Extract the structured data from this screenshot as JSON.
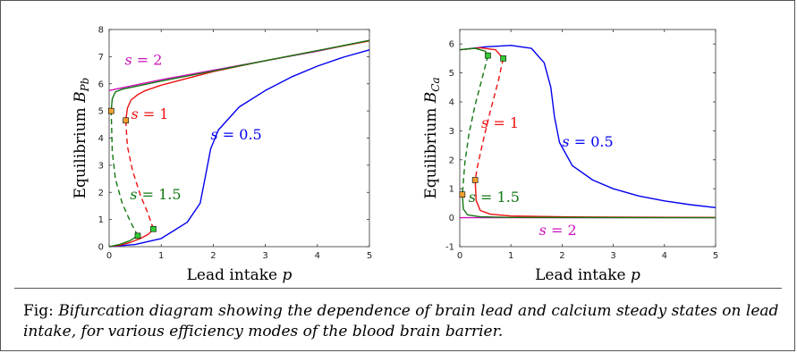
{
  "caption": {
    "lead": "Fig:",
    "text": "Bifurcation diagram showing the dependence of brain lead and calcium steady states on lead intake, for various efficiency modes of the blood brain barrier."
  },
  "colors": {
    "s0_5": "#0000ee",
    "s1": "#ee1111",
    "s1_5": "#117711",
    "s2": "#cc11bb",
    "marker_green": "#33cc33",
    "marker_orange": "#f0a030"
  },
  "chart_data": [
    {
      "type": "line",
      "xlabel": "Lead intake p",
      "ylabel": "Equilibrium B_Pb",
      "xlim": [
        0,
        5
      ],
      "ylim": [
        0,
        8
      ],
      "xticks": [
        0,
        1,
        2,
        3,
        4,
        5
      ],
      "yticks": [
        0,
        1,
        2,
        3,
        4,
        5,
        6,
        7,
        8
      ],
      "grid": false,
      "annotations": [
        {
          "text": "s = 2",
          "x": 0.3,
          "y": 6.7,
          "color": "s2"
        },
        {
          "text": "s = 1",
          "x": 0.42,
          "y": 4.7,
          "color": "s1"
        },
        {
          "text": "s = 0.5",
          "x": 1.95,
          "y": 3.95,
          "color": "s0_5"
        },
        {
          "text": "s = 1.5",
          "x": 0.4,
          "y": 1.75,
          "color": "s1_5"
        }
      ],
      "series": [
        {
          "color": "s2",
          "style": "solid",
          "points": [
            [
              0,
              5.75
            ],
            [
              1,
              6.15
            ],
            [
              2,
              6.5
            ],
            [
              3,
              6.85
            ],
            [
              4,
              7.2
            ],
            [
              5,
              7.6
            ]
          ]
        },
        {
          "color": "s0_5",
          "style": "solid",
          "points": [
            [
              0,
              0
            ],
            [
              0.5,
              0.08
            ],
            [
              1,
              0.3
            ],
            [
              1.5,
              0.9
            ],
            [
              1.75,
              1.6
            ],
            [
              1.85,
              2.6
            ],
            [
              1.95,
              3.6
            ],
            [
              2.1,
              4.3
            ],
            [
              2.5,
              5.15
            ],
            [
              3,
              5.75
            ],
            [
              3.5,
              6.25
            ],
            [
              4,
              6.65
            ],
            [
              4.5,
              6.98
            ],
            [
              5,
              7.25
            ]
          ]
        },
        {
          "color": "s1",
          "style": "solid",
          "points": [
            [
              0,
              0
            ],
            [
              0.2,
              0.05
            ],
            [
              0.4,
              0.15
            ],
            [
              0.6,
              0.3
            ],
            [
              0.75,
              0.45
            ],
            [
              0.85,
              0.65
            ]
          ]
        },
        {
          "color": "s1",
          "style": "dashed",
          "points": [
            [
              0.85,
              0.65
            ],
            [
              0.75,
              1.2
            ],
            [
              0.6,
              1.9
            ],
            [
              0.45,
              2.8
            ],
            [
              0.35,
              3.7
            ],
            [
              0.32,
              4.65
            ]
          ]
        },
        {
          "color": "s1",
          "style": "solid",
          "points": [
            [
              0.32,
              4.65
            ],
            [
              0.35,
              5.1
            ],
            [
              0.42,
              5.4
            ],
            [
              0.55,
              5.6
            ],
            [
              0.7,
              5.75
            ],
            [
              1,
              5.95
            ],
            [
              2,
              6.45
            ],
            [
              3,
              6.85
            ],
            [
              4,
              7.22
            ],
            [
              5,
              7.58
            ]
          ]
        },
        {
          "color": "s1_5",
          "style": "solid",
          "points": [
            [
              0,
              0
            ],
            [
              0.2,
              0.08
            ],
            [
              0.4,
              0.22
            ],
            [
              0.55,
              0.4
            ]
          ]
        },
        {
          "color": "s1_5",
          "style": "dashed",
          "points": [
            [
              0.55,
              0.4
            ],
            [
              0.4,
              0.95
            ],
            [
              0.25,
              1.6
            ],
            [
              0.12,
              2.5
            ],
            [
              0.06,
              3.5
            ],
            [
              0.04,
              5.0
            ]
          ]
        },
        {
          "color": "s1_5",
          "style": "solid",
          "points": [
            [
              0.04,
              5.0
            ],
            [
              0.06,
              5.45
            ],
            [
              0.12,
              5.7
            ],
            [
              0.25,
              5.8
            ],
            [
              0.5,
              5.9
            ],
            [
              1,
              6.1
            ],
            [
              2,
              6.47
            ],
            [
              3,
              6.85
            ],
            [
              4,
              7.22
            ],
            [
              5,
              7.6
            ]
          ]
        }
      ],
      "markers": [
        {
          "x": 0.55,
          "y": 0.4,
          "color": "marker_green"
        },
        {
          "x": 0.85,
          "y": 0.65,
          "color": "marker_green"
        },
        {
          "x": 0.04,
          "y": 5.0,
          "color": "marker_orange"
        },
        {
          "x": 0.32,
          "y": 4.65,
          "color": "marker_orange"
        }
      ]
    },
    {
      "type": "line",
      "xlabel": "Lead intake p",
      "ylabel": "Equilibrium B_Ca",
      "xlim": [
        0,
        5
      ],
      "ylim": [
        -1,
        6.5
      ],
      "xticks": [
        0,
        1,
        2,
        3,
        4,
        5
      ],
      "yticks": [
        -1,
        0,
        1,
        2,
        3,
        4,
        5,
        6
      ],
      "grid": false,
      "annotations": [
        {
          "text": "s = 1",
          "x": 0.42,
          "y": 3.1,
          "color": "s1"
        },
        {
          "text": "s = 0.5",
          "x": 2.0,
          "y": 2.45,
          "color": "s0_5"
        },
        {
          "text": "s = 1.5",
          "x": 0.17,
          "y": 0.55,
          "color": "s1_5"
        },
        {
          "text": "s = 2",
          "x": 1.55,
          "y": -0.6,
          "color": "s2"
        }
      ],
      "series": [
        {
          "color": "s2",
          "style": "solid",
          "points": [
            [
              0,
              0
            ],
            [
              5,
              0
            ]
          ]
        },
        {
          "color": "s0_5",
          "style": "solid",
          "points": [
            [
              0,
              5.8
            ],
            [
              0.5,
              5.9
            ],
            [
              1,
              5.95
            ],
            [
              1.4,
              5.85
            ],
            [
              1.65,
              5.35
            ],
            [
              1.78,
              4.5
            ],
            [
              1.85,
              3.5
            ],
            [
              1.95,
              2.6
            ],
            [
              2.2,
              1.8
            ],
            [
              2.6,
              1.3
            ],
            [
              3,
              1.0
            ],
            [
              3.5,
              0.75
            ],
            [
              4,
              0.58
            ],
            [
              4.5,
              0.45
            ],
            [
              5,
              0.35
            ]
          ]
        },
        {
          "color": "s1",
          "style": "solid",
          "points": [
            [
              0,
              5.8
            ],
            [
              0.4,
              5.87
            ],
            [
              0.7,
              5.8
            ],
            [
              0.85,
              5.5
            ]
          ]
        },
        {
          "color": "s1",
          "style": "dashed",
          "points": [
            [
              0.85,
              5.5
            ],
            [
              0.75,
              4.7
            ],
            [
              0.6,
              3.7
            ],
            [
              0.45,
              2.6
            ],
            [
              0.35,
              1.8
            ],
            [
              0.3,
              1.3
            ]
          ]
        },
        {
          "color": "s1",
          "style": "solid",
          "points": [
            [
              0.3,
              1.3
            ],
            [
              0.32,
              0.6
            ],
            [
              0.4,
              0.25
            ],
            [
              0.6,
              0.12
            ],
            [
              1,
              0.06
            ],
            [
              2,
              0.03
            ],
            [
              3,
              0.02
            ],
            [
              5,
              0.01
            ]
          ]
        },
        {
          "color": "s1_5",
          "style": "solid",
          "points": [
            [
              0,
              5.8
            ],
            [
              0.3,
              5.85
            ],
            [
              0.5,
              5.75
            ],
            [
              0.55,
              5.6
            ]
          ]
        },
        {
          "color": "s1_5",
          "style": "dashed",
          "points": [
            [
              0.55,
              5.6
            ],
            [
              0.45,
              4.9
            ],
            [
              0.3,
              3.9
            ],
            [
              0.18,
              2.9
            ],
            [
              0.1,
              1.9
            ],
            [
              0.05,
              0.8
            ]
          ]
        },
        {
          "color": "s1_5",
          "style": "solid",
          "points": [
            [
              0.05,
              0.8
            ],
            [
              0.07,
              0.3
            ],
            [
              0.15,
              0.1
            ],
            [
              0.4,
              0.03
            ],
            [
              1,
              0.01
            ],
            [
              5,
              0.0
            ]
          ]
        }
      ],
      "markers": [
        {
          "x": 0.55,
          "y": 5.6,
          "color": "marker_green"
        },
        {
          "x": 0.85,
          "y": 5.5,
          "color": "marker_green"
        },
        {
          "x": 0.05,
          "y": 0.8,
          "color": "marker_orange"
        },
        {
          "x": 0.3,
          "y": 1.3,
          "color": "marker_orange"
        }
      ]
    }
  ]
}
